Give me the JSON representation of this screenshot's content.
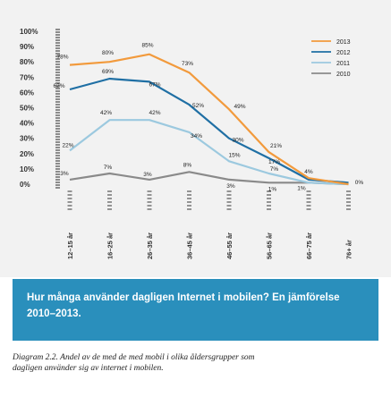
{
  "chart_data": {
    "type": "line",
    "categories": [
      "12–15 år",
      "16–25 år",
      "26–35 år",
      "36–45 år",
      "46–55 år",
      "56–65 år",
      "66–75 år",
      "76+ år"
    ],
    "ylim": [
      0,
      100
    ],
    "yticks": [
      "0%",
      "10%",
      "20%",
      "30%",
      "40%",
      "50%",
      "60%",
      "70%",
      "80%",
      "90%",
      "100%"
    ],
    "legend_position": "top-right",
    "series": [
      {
        "name": "2013",
        "color": "#f29a3c",
        "values": [
          78,
          80,
          85,
          73,
          49,
          21,
          4,
          0
        ],
        "labels": [
          "78%",
          "80%",
          "85%",
          "73%",
          "49%",
          "21%",
          "4%",
          "0%"
        ]
      },
      {
        "name": "2012",
        "color": "#1f6fa4",
        "values": [
          62,
          69,
          67,
          52,
          30,
          17,
          3,
          1
        ],
        "labels": [
          "62%",
          "69%",
          "67%",
          "52%",
          "30%",
          "17%",
          "",
          ""
        ]
      },
      {
        "name": "2011",
        "color": "#9cc9df",
        "values": [
          22,
          42,
          42,
          34,
          15,
          7,
          1,
          0
        ],
        "labels": [
          "22%",
          "42%",
          "42%",
          "34%",
          "15%",
          "7%",
          "1%",
          ""
        ]
      },
      {
        "name": "2010",
        "color": "#8a8a8a",
        "values": [
          3,
          7,
          3,
          8,
          3,
          1,
          1,
          0
        ],
        "labels": [
          "3%",
          "7%",
          "3%",
          "8%",
          "3%",
          "1%",
          "",
          ""
        ]
      }
    ]
  },
  "banner": {
    "title": "Hur många använder dagligen Internet i mobilen? En jämförelse 2010–2013."
  },
  "caption": {
    "text": "Diagram 2.2. Andel av de med de med mobil i olika åldersgrupper som dagligen använder sig av internet i mobilen."
  }
}
